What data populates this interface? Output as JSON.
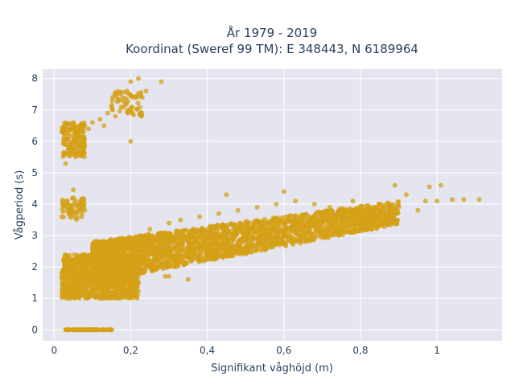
{
  "chart_data": {
    "type": "scatter",
    "title_line1": "År 1979 - 2019",
    "title_line2": "Koordinat (Sweref 99 TM): E 348443, N 6189964",
    "xlabel": "Signifikant våghöjd (m)",
    "ylabel": "Vågperiod (s)",
    "xlim": [
      -0.03,
      1.17
    ],
    "ylim": [
      -0.35,
      8.3
    ],
    "xticks": [
      {
        "value": 0,
        "label": "0"
      },
      {
        "value": 0.2,
        "label": "0,2"
      },
      {
        "value": 0.4,
        "label": "0,4"
      },
      {
        "value": 0.6,
        "label": "0,6"
      },
      {
        "value": 0.8,
        "label": "0,8"
      },
      {
        "value": 1,
        "label": "1"
      }
    ],
    "yticks": [
      {
        "value": 0,
        "label": "0"
      },
      {
        "value": 1,
        "label": "1"
      },
      {
        "value": 2,
        "label": "2"
      },
      {
        "value": 3,
        "label": "3"
      },
      {
        "value": 4,
        "label": "4"
      },
      {
        "value": 5,
        "label": "5"
      },
      {
        "value": 6,
        "label": "6"
      },
      {
        "value": 7,
        "label": "7"
      },
      {
        "value": 8,
        "label": "8"
      }
    ],
    "grid": true,
    "background_color": "#e5e5f0",
    "marker_color": "#d4a017",
    "points": [
      [
        0.03,
        0
      ],
      [
        0.05,
        0
      ],
      [
        0.07,
        0
      ],
      [
        0.09,
        0
      ],
      [
        0.11,
        0
      ],
      [
        0.13,
        0
      ],
      [
        0.15,
        0
      ],
      [
        0.02,
        3.6
      ],
      [
        0.04,
        3.9
      ],
      [
        0.05,
        4.2
      ],
      [
        0.06,
        3.7
      ],
      [
        0.07,
        4.0
      ],
      [
        0.08,
        3.8
      ],
      [
        0.05,
        4.45
      ],
      [
        0.03,
        5.3
      ],
      [
        0.04,
        5.7
      ],
      [
        0.05,
        6.0
      ],
      [
        0.06,
        6.3
      ],
      [
        0.07,
        6.1
      ],
      [
        0.08,
        6.5
      ],
      [
        0.09,
        6.4
      ],
      [
        0.1,
        6.6
      ],
      [
        0.12,
        6.7
      ],
      [
        0.14,
        6.9
      ],
      [
        0.15,
        7.1
      ],
      [
        0.17,
        7.3
      ],
      [
        0.19,
        7.6
      ],
      [
        0.2,
        7.9
      ],
      [
        0.22,
        8.0
      ],
      [
        0.23,
        7.4
      ],
      [
        0.24,
        7.6
      ],
      [
        0.28,
        7.9
      ],
      [
        0.2,
        6.0
      ],
      [
        0.13,
        6.5
      ],
      [
        0.16,
        6.8
      ],
      [
        0.02,
        1.3
      ],
      [
        0.02,
        1.8
      ],
      [
        0.03,
        2.0
      ],
      [
        0.05,
        1.5
      ],
      [
        0.07,
        1.2
      ],
      [
        0.1,
        1.1
      ],
      [
        0.13,
        1.05
      ],
      [
        0.16,
        1.1
      ],
      [
        0.05,
        2.2
      ],
      [
        0.08,
        2.4
      ],
      [
        0.1,
        2.0
      ],
      [
        0.12,
        2.6
      ],
      [
        0.15,
        2.8
      ],
      [
        0.18,
        1.5
      ],
      [
        0.2,
        2.9
      ],
      [
        0.22,
        1.8
      ],
      [
        0.25,
        3.2
      ],
      [
        0.27,
        2.3
      ],
      [
        0.3,
        3.4
      ],
      [
        0.3,
        1.7
      ],
      [
        0.33,
        3.5
      ],
      [
        0.35,
        2.5
      ],
      [
        0.38,
        3.6
      ],
      [
        0.4,
        2.7
      ],
      [
        0.43,
        3.7
      ],
      [
        0.45,
        2.8
      ],
      [
        0.48,
        3.8
      ],
      [
        0.5,
        3.0
      ],
      [
        0.53,
        3.9
      ],
      [
        0.55,
        3.1
      ],
      [
        0.58,
        4.0
      ],
      [
        0.6,
        3.2
      ],
      [
        0.63,
        4.1
      ],
      [
        0.65,
        3.3
      ],
      [
        0.68,
        4.0
      ],
      [
        0.7,
        3.4
      ],
      [
        0.72,
        3.9
      ],
      [
        0.75,
        3.5
      ],
      [
        0.78,
        4.1
      ],
      [
        0.8,
        3.6
      ],
      [
        0.83,
        3.8
      ],
      [
        0.85,
        4.0
      ],
      [
        0.88,
        3.7
      ],
      [
        0.9,
        3.9
      ],
      [
        0.92,
        4.3
      ],
      [
        0.95,
        3.8
      ],
      [
        0.97,
        4.1
      ],
      [
        1.0,
        4.1
      ],
      [
        1.01,
        4.6
      ],
      [
        1.04,
        4.15
      ],
      [
        1.07,
        4.15
      ],
      [
        1.11,
        4.15
      ],
      [
        0.98,
        4.55
      ],
      [
        0.89,
        4.6
      ],
      [
        0.6,
        4.4
      ],
      [
        0.45,
        4.3
      ],
      [
        0.29,
        1.7
      ],
      [
        0.35,
        1.6
      ],
      [
        0.22,
        1.5
      ]
    ],
    "dense_regions": [
      {
        "x_min": 0.02,
        "x_max": 0.22,
        "y_min": 1.0,
        "y_max": 2.4,
        "count": 1100
      },
      {
        "x_min": 0.02,
        "x_max": 0.08,
        "y_min": 5.5,
        "y_max": 6.6,
        "count": 160
      },
      {
        "x_min": 0.02,
        "x_max": 0.08,
        "y_min": 3.5,
        "y_max": 4.2,
        "count": 60
      },
      {
        "x_min": 0.15,
        "x_max": 0.23,
        "y_min": 6.8,
        "y_max": 7.6,
        "count": 60
      },
      {
        "x_min": 0.03,
        "x_max": 0.15,
        "y_min": 0,
        "y_max": 0,
        "count": 60
      }
    ],
    "band": {
      "x_start": 0.1,
      "x_end": 0.9,
      "count": 2600,
      "lower_at_start": 1.5,
      "upper_at_start": 2.8,
      "lower_at_end": 3.35,
      "upper_at_end": 4.1
    }
  }
}
